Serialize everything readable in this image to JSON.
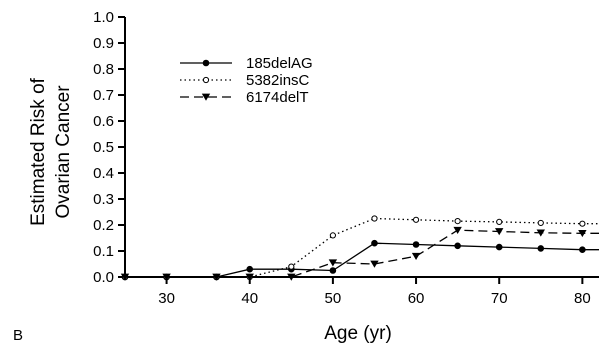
{
  "panel_label": "B",
  "chart_data": {
    "type": "line",
    "xlabel": "Age (yr)",
    "ylabel_lines": [
      "Estimated Risk of",
      "Ovarian Cancer"
    ],
    "xlim": [
      25,
      82
    ],
    "ylim": [
      0,
      1.0
    ],
    "x_ticks": [
      30,
      40,
      50,
      60,
      70,
      80
    ],
    "y_ticks": [
      0.0,
      0.1,
      0.2,
      0.3,
      0.4,
      0.5,
      0.6,
      0.7,
      0.8,
      0.9,
      1.0
    ],
    "y_tick_labels": [
      "0.0",
      "0.1",
      "0.2",
      "0.3",
      "0.4",
      "0.5",
      "0.6",
      "0.7",
      "0.8",
      "0.9",
      "1.0"
    ],
    "legend_position": "upper-left",
    "series": [
      {
        "name": "185delAG",
        "style": "solid",
        "marker": "filled-circle",
        "color": "#000000",
        "x": [
          25,
          30,
          36,
          40,
          45,
          50,
          55,
          60,
          65,
          70,
          75,
          80,
          82
        ],
        "y": [
          0.0,
          0.0,
          0.0,
          0.03,
          0.03,
          0.025,
          0.13,
          0.125,
          0.12,
          0.115,
          0.11,
          0.105,
          0.105
        ]
      },
      {
        "name": "5382insC",
        "style": "dotted",
        "marker": "open-circle",
        "color": "#000000",
        "x": [
          25,
          30,
          36,
          40,
          45,
          50,
          55,
          60,
          65,
          70,
          75,
          80,
          82
        ],
        "y": [
          0.0,
          0.0,
          0.0,
          0.0,
          0.04,
          0.16,
          0.225,
          0.22,
          0.215,
          0.212,
          0.208,
          0.205,
          0.205
        ]
      },
      {
        "name": "6174delT",
        "style": "dashed",
        "marker": "filled-triangle-down",
        "color": "#000000",
        "x": [
          25,
          30,
          36,
          40,
          45,
          50,
          55,
          60,
          65,
          70,
          75,
          80,
          82
        ],
        "y": [
          0.0,
          0.0,
          0.0,
          0.0,
          0.0,
          0.055,
          0.05,
          0.08,
          0.18,
          0.175,
          0.17,
          0.168,
          0.168
        ]
      }
    ]
  }
}
